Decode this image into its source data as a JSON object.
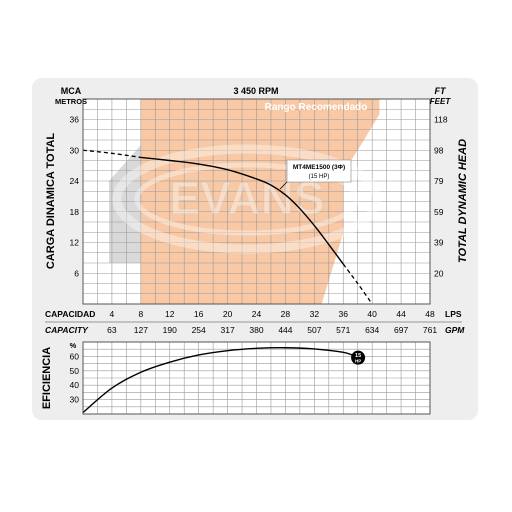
{
  "chart_data": [
    {
      "type": "line",
      "title": "3 450 RPM",
      "band_label": "Rango Recomendado",
      "watermark": "EVANS",
      "y_left_unit": "MCA",
      "y_left_unit_sub": "METROS",
      "y_right_unit": "FT",
      "y_right_unit_sub": "FEET",
      "y_left_label": "CARGA DINAMICA TOTAL",
      "y_right_label": "TOTAL DYNAMIC HEAD",
      "x_label_primary": "CAPACIDAD",
      "x_unit_primary": "LPS",
      "x_label_secondary": "CAPACITY",
      "x_unit_secondary": "GPM",
      "x_ticks": [
        "4",
        "8",
        "12",
        "16",
        "20",
        "24",
        "28",
        "32",
        "36",
        "40",
        "44",
        "48"
      ],
      "x_ticks_secondary": [
        "63",
        "127",
        "190",
        "254",
        "317",
        "380",
        "444",
        "507",
        "571",
        "634",
        "697",
        "761"
      ],
      "y_ticks_left": [
        "6",
        "12",
        "18",
        "24",
        "30",
        "36"
      ],
      "y_ticks_right": [
        "20",
        "39",
        "59",
        "79",
        "98",
        "118"
      ],
      "xlim": [
        0,
        48
      ],
      "ylim": [
        0,
        40
      ],
      "recommended_range_lps": [
        8,
        36
      ],
      "grid": true,
      "colors": {
        "band": "#f9c8a4",
        "line": "#000000",
        "grid": "#9a9a9a"
      },
      "series": [
        {
          "name": "MT4ME1500 (3Φ)",
          "name_sub": "(15 HP)",
          "solid": [
            [
              8,
              28.6
            ],
            [
              12,
              28.0
            ],
            [
              16,
              27.3
            ],
            [
              20,
              26.2
            ],
            [
              24,
              24.4
            ],
            [
              26,
              23.2
            ],
            [
              28,
              21.3
            ],
            [
              30,
              18.6
            ],
            [
              32,
              15.3
            ],
            [
              34,
              11.6
            ],
            [
              36,
              7.8
            ]
          ],
          "dashed_start": [
            [
              0,
              30.0
            ],
            [
              4,
              29.4
            ],
            [
              8,
              28.6
            ]
          ],
          "dashed_end": [
            [
              36,
              7.8
            ],
            [
              38,
              4.0
            ],
            [
              40,
              0.0
            ]
          ]
        }
      ]
    },
    {
      "type": "line",
      "y_label": "EFICIENCIA",
      "y_unit": "%",
      "y_ticks": [
        "30",
        "40",
        "50",
        "60"
      ],
      "ylim": [
        20,
        70
      ],
      "xlim": [
        0,
        48
      ],
      "grid": true,
      "marker_label": "15",
      "marker_label_sub": "HP",
      "series": [
        {
          "name": "15 HP",
          "points": [
            [
              0,
              21
            ],
            [
              4,
              38
            ],
            [
              8,
              49
            ],
            [
              12,
              56
            ],
            [
              16,
              61
            ],
            [
              20,
              64
            ],
            [
              24,
              65.6
            ],
            [
              28,
              66.0
            ],
            [
              32,
              65.2
            ],
            [
              36,
              62.8
            ],
            [
              37.5,
              60.5
            ]
          ]
        }
      ]
    }
  ]
}
